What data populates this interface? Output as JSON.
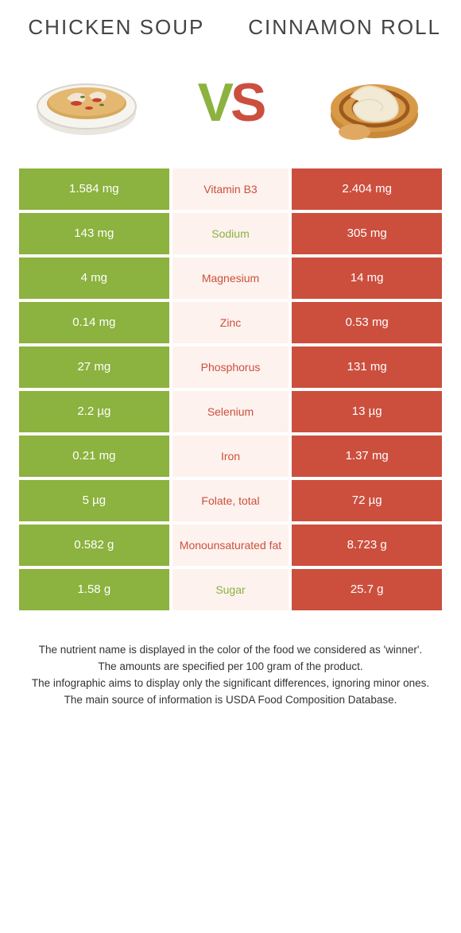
{
  "colors": {
    "green": "#8cb23f",
    "red": "#cc4f3e",
    "mid_bg": "#fdf2ed",
    "vs_v": "#8cb23f",
    "vs_s": "#cc4f3e",
    "title_color": "#444444",
    "footer_color": "#333333"
  },
  "left_food": {
    "title": "CHICKEN SOUP"
  },
  "right_food": {
    "title": "CINNAMON ROLL"
  },
  "vs": {
    "v": "V",
    "s": "S"
  },
  "rows": [
    {
      "left": "1.584 mg",
      "label": "Vitamin B3",
      "right": "2.404 mg",
      "winner": "right"
    },
    {
      "left": "143 mg",
      "label": "Sodium",
      "right": "305 mg",
      "winner": "left"
    },
    {
      "left": "4 mg",
      "label": "Magnesium",
      "right": "14 mg",
      "winner": "right"
    },
    {
      "left": "0.14 mg",
      "label": "Zinc",
      "right": "0.53 mg",
      "winner": "right"
    },
    {
      "left": "27 mg",
      "label": "Phosphorus",
      "right": "131 mg",
      "winner": "right"
    },
    {
      "left": "2.2 µg",
      "label": "Selenium",
      "right": "13 µg",
      "winner": "right"
    },
    {
      "left": "0.21 mg",
      "label": "Iron",
      "right": "1.37 mg",
      "winner": "right"
    },
    {
      "left": "5 µg",
      "label": "Folate, total",
      "right": "72 µg",
      "winner": "right"
    },
    {
      "left": "0.582 g",
      "label": "Monounsaturated fat",
      "right": "8.723 g",
      "winner": "right"
    },
    {
      "left": "1.58 g",
      "label": "Sugar",
      "right": "25.7 g",
      "winner": "left"
    }
  ],
  "footer": {
    "l1": "The nutrient name is displayed in the color of the food we considered as 'winner'.",
    "l2": "The amounts are specified per 100 gram of the product.",
    "l3": "The infographic aims to display only the significant differences, ignoring minor ones.",
    "l4": "The main source of information is USDA Food Composition Database."
  }
}
